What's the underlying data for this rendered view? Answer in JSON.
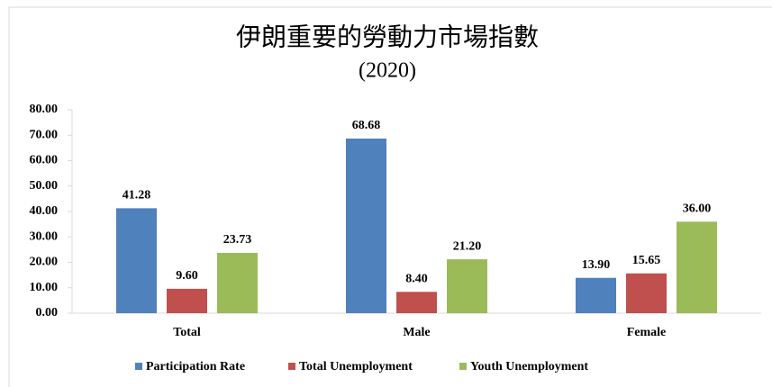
{
  "chart_data": {
    "type": "bar",
    "title": "伊朗重要的勞動力市場指數",
    "subtitle": "(2020)",
    "categories": [
      "Total",
      "Male",
      "Female"
    ],
    "series": [
      {
        "name": "Participation Rate",
        "color": "#4f81bd",
        "values": [
          41.28,
          68.68,
          13.9
        ],
        "value_labels": [
          "41.28",
          "68.68",
          "13.90"
        ]
      },
      {
        "name": "Total Unemployment",
        "color": "#c0504d",
        "values": [
          9.6,
          8.4,
          15.65
        ],
        "value_labels": [
          "9.60",
          "8.40",
          "15.65"
        ]
      },
      {
        "name": "Youth Unemployment",
        "color": "#9bbb59",
        "values": [
          23.73,
          21.2,
          36
        ],
        "value_labels": [
          "23.73",
          "21.20",
          "36.00"
        ]
      }
    ],
    "ylim": [
      0,
      80
    ],
    "yticks": [
      {
        "value": 0,
        "label": "0.00"
      },
      {
        "value": 10,
        "label": "10.00"
      },
      {
        "value": 20,
        "label": "20.00"
      },
      {
        "value": 30,
        "label": "30.00"
      },
      {
        "value": 40,
        "label": "40.00"
      },
      {
        "value": 50,
        "label": "50.00"
      },
      {
        "value": 60,
        "label": "60.00"
      },
      {
        "value": 70,
        "label": "70.00"
      },
      {
        "value": 80,
        "label": "80.00"
      }
    ],
    "grid": false,
    "legend": "bottom"
  }
}
